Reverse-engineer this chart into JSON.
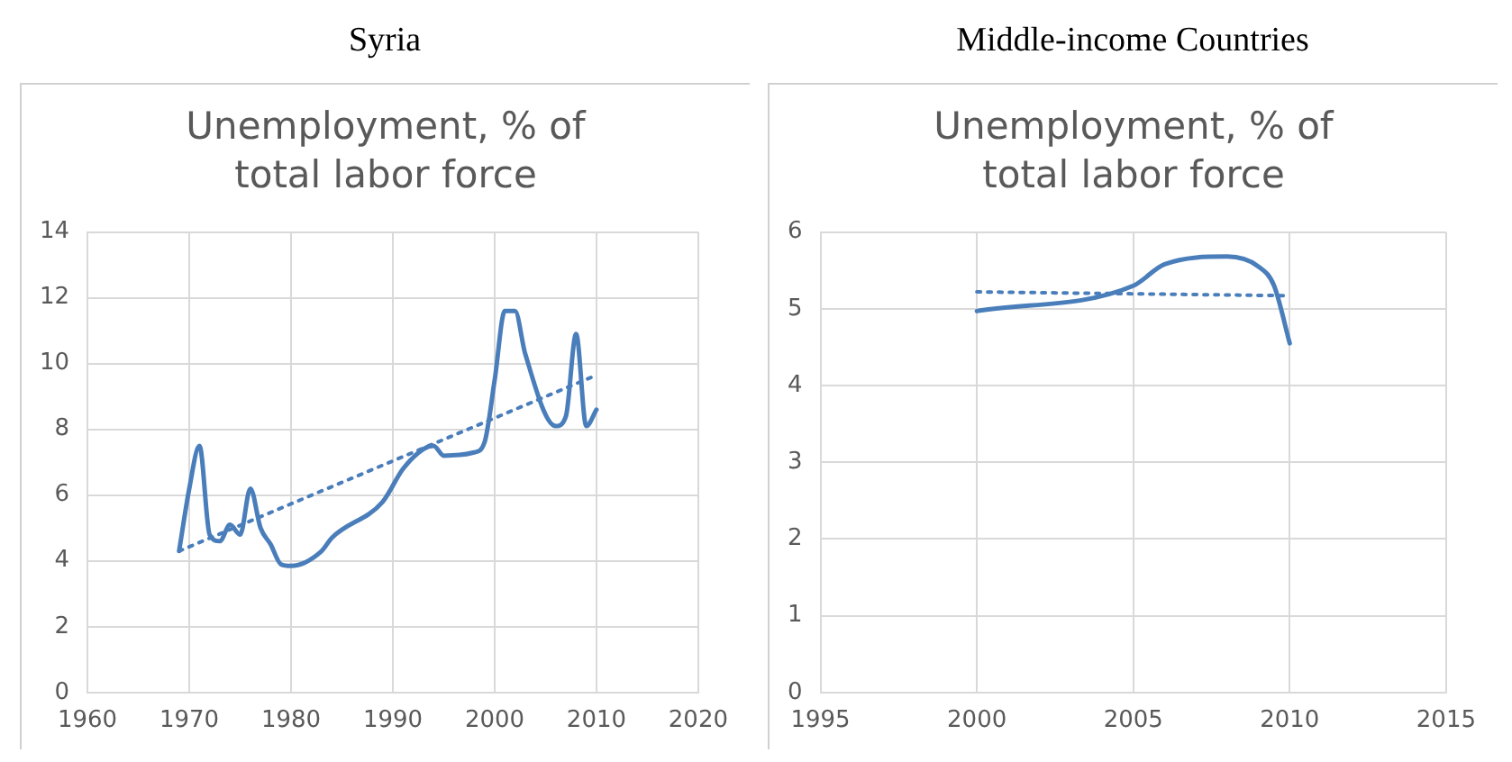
{
  "chart_data": [
    {
      "type": "line",
      "title": "Syria",
      "subtitle": "Unemployment, % of total labor force",
      "xlim": [
        1960,
        2020
      ],
      "xticks": [
        1960,
        1970,
        1980,
        1990,
        2000,
        2010,
        2020
      ],
      "ylim": [
        0,
        14
      ],
      "yticks": [
        0,
        2,
        4,
        6,
        8,
        10,
        12,
        14
      ],
      "grid": true,
      "marker": "none",
      "series": [
        {
          "color": "#4a7ebb",
          "line_style": "solid",
          "x": [
            1969,
            1970,
            1971,
            1972,
            1973,
            1974,
            1975,
            1976,
            1977,
            1978,
            1979,
            1980,
            1983,
            1984,
            1989,
            1991,
            1993,
            1994,
            1995,
            1998,
            1999,
            2000,
            2001,
            2002,
            2003,
            2006,
            2007,
            2008,
            2009,
            2010
          ],
          "values": [
            4.3,
            6.2,
            7.5,
            4.8,
            4.6,
            5.1,
            4.8,
            6.2,
            5.0,
            4.5,
            3.9,
            3.85,
            4.3,
            4.7,
            5.8,
            6.8,
            7.4,
            7.5,
            7.2,
            7.3,
            7.6,
            9.5,
            11.6,
            11.6,
            10.3,
            8.1,
            8.4,
            10.9,
            8.1,
            8.6
          ]
        },
        {
          "type": "line",
          "color": "#4a7ebb",
          "line_style": "dotted",
          "x": [
            1969,
            2010
          ],
          "values": [
            4.3,
            9.65
          ]
        }
      ]
    },
    {
      "type": "line",
      "title": "Middle-income Countries",
      "subtitle": "Unemployment, % of total labor force",
      "xlim": [
        1995,
        2015
      ],
      "xticks": [
        1995,
        2000,
        2005,
        2010,
        2015
      ],
      "ylim": [
        0,
        6
      ],
      "yticks": [
        0,
        1,
        2,
        3,
        4,
        5,
        6
      ],
      "grid": true,
      "marker": "none",
      "series": [
        {
          "color": "#4a7ebb",
          "line_style": "solid",
          "x": [
            2000,
            2005,
            2006,
            2008,
            2009,
            2009.5,
            2010
          ],
          "values": [
            4.97,
            5.3,
            5.58,
            5.68,
            5.55,
            5.3,
            4.55
          ]
        },
        {
          "type": "line",
          "color": "#4a7ebb",
          "line_style": "dotted",
          "x": [
            2000,
            2010
          ],
          "values": [
            5.22,
            5.17
          ]
        }
      ]
    }
  ]
}
